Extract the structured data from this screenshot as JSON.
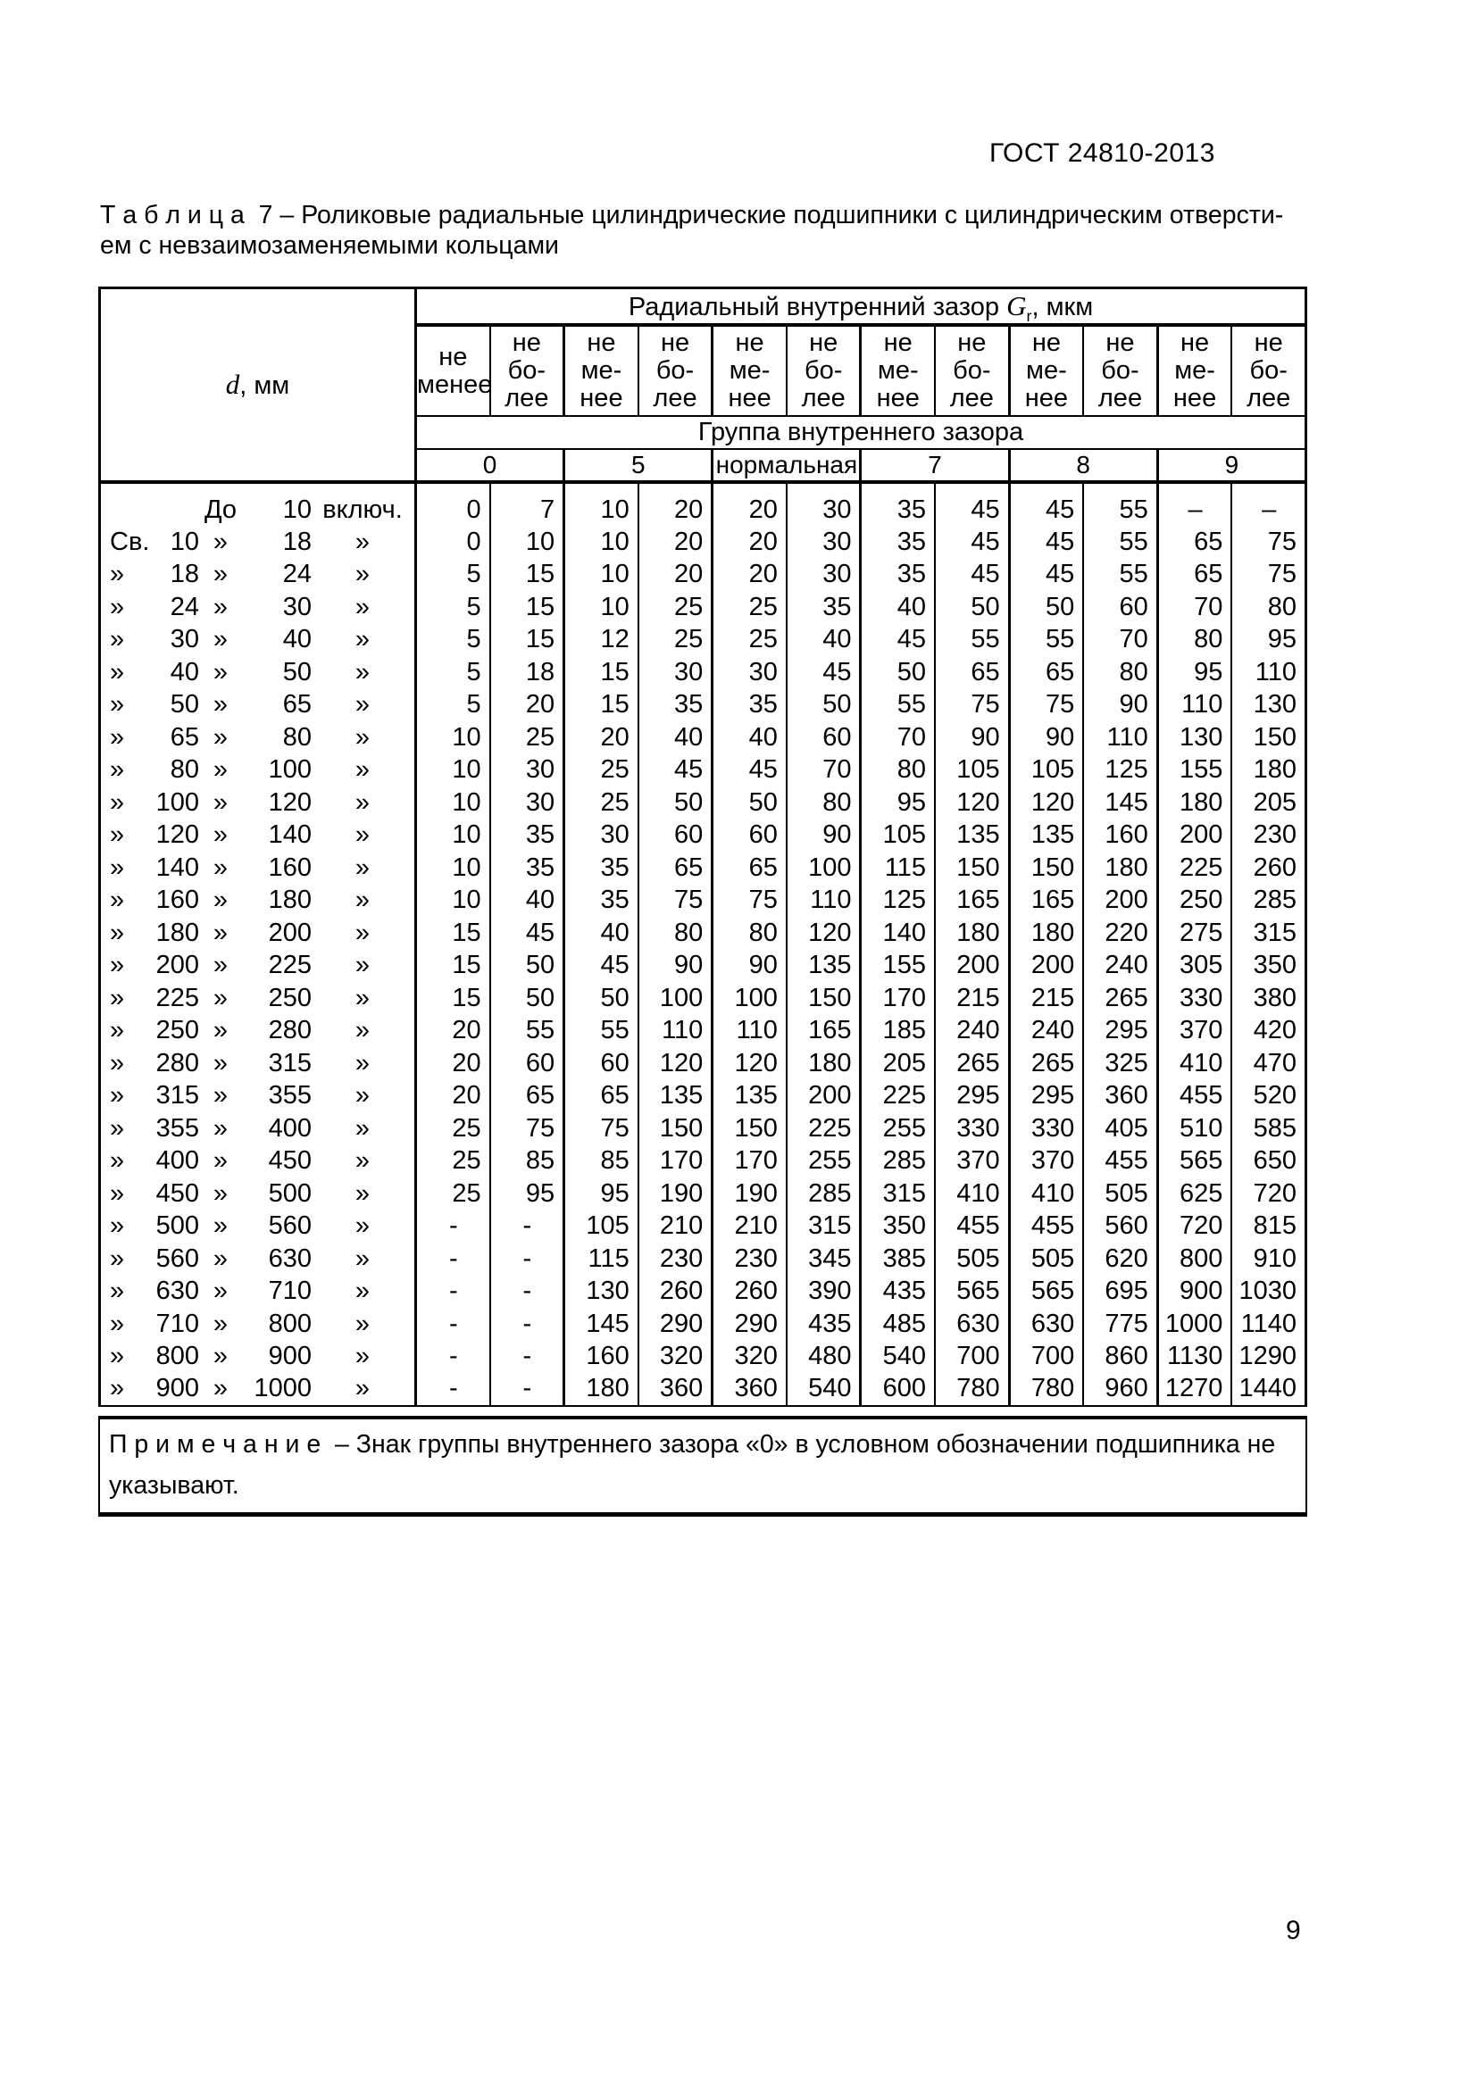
{
  "page": {
    "doc_ref": "ГОСТ 24810-2013",
    "title_line1": "Т а б л и ц а  7 – Роликовые радиальные цилиндрические подшипники с цилиндрическим отверсти-",
    "title_line2": "ем с невзаимозаменяемыми кольцами",
    "page_number": "9"
  },
  "table": {
    "d_label_italic": "d",
    "d_label_rest": ", мм",
    "top_header_pre": "Радиальный внутренний зазор ",
    "top_header_g": "G",
    "top_header_sub": "r",
    "top_header_post": ", мкм",
    "limit_headers": [
      [
        "не",
        "менее"
      ],
      [
        "не",
        "бо-",
        "лее"
      ],
      [
        "не",
        "ме-",
        "нее"
      ],
      [
        "не",
        "бо-",
        "лее"
      ],
      [
        "не",
        "ме-",
        "нее"
      ],
      [
        "не",
        "бо-",
        "лее"
      ],
      [
        "не",
        "ме-",
        "нее"
      ],
      [
        "не",
        "бо-",
        "лее"
      ],
      [
        "не",
        "ме-",
        "нее"
      ],
      [
        "не",
        "бо-",
        "лее"
      ],
      [
        "не",
        "ме-",
        "нее"
      ],
      [
        "не",
        "бо-",
        "лее"
      ]
    ],
    "group_header": "Группа внутреннего зазора",
    "groups": [
      "0",
      "5",
      "нормальная",
      "7",
      "8",
      "9"
    ],
    "rows": [
      {
        "d": [
          "",
          "",
          "До",
          "10",
          "включ."
        ],
        "v": [
          "0",
          "7",
          "10",
          "20",
          "20",
          "30",
          "35",
          "45",
          "45",
          "55",
          "–",
          "–"
        ]
      },
      {
        "d": [
          "Св.",
          "10",
          "»",
          "18",
          "»"
        ],
        "v": [
          "0",
          "10",
          "10",
          "20",
          "20",
          "30",
          "35",
          "45",
          "45",
          "55",
          "65",
          "75"
        ]
      },
      {
        "d": [
          "»",
          "18",
          "»",
          "24",
          "»"
        ],
        "v": [
          "5",
          "15",
          "10",
          "20",
          "20",
          "30",
          "35",
          "45",
          "45",
          "55",
          "65",
          "75"
        ]
      },
      {
        "d": [
          "»",
          "24",
          "»",
          "30",
          "»"
        ],
        "v": [
          "5",
          "15",
          "10",
          "25",
          "25",
          "35",
          "40",
          "50",
          "50",
          "60",
          "70",
          "80"
        ]
      },
      {
        "d": [
          "»",
          "30",
          "»",
          "40",
          "»"
        ],
        "v": [
          "5",
          "15",
          "12",
          "25",
          "25",
          "40",
          "45",
          "55",
          "55",
          "70",
          "80",
          "95"
        ]
      },
      {
        "d": [
          "»",
          "40",
          "»",
          "50",
          "»"
        ],
        "v": [
          "5",
          "18",
          "15",
          "30",
          "30",
          "45",
          "50",
          "65",
          "65",
          "80",
          "95",
          "110"
        ]
      },
      {
        "d": [
          "»",
          "50",
          "»",
          "65",
          "»"
        ],
        "v": [
          "5",
          "20",
          "15",
          "35",
          "35",
          "50",
          "55",
          "75",
          "75",
          "90",
          "110",
          "130"
        ]
      },
      {
        "d": [
          "»",
          "65",
          "»",
          "80",
          "»"
        ],
        "v": [
          "10",
          "25",
          "20",
          "40",
          "40",
          "60",
          "70",
          "90",
          "90",
          "110",
          "130",
          "150"
        ]
      },
      {
        "d": [
          "»",
          "80",
          "»",
          "100",
          "»"
        ],
        "v": [
          "10",
          "30",
          "25",
          "45",
          "45",
          "70",
          "80",
          "105",
          "105",
          "125",
          "155",
          "180"
        ]
      },
      {
        "d": [
          "»",
          "100",
          "»",
          "120",
          "»"
        ],
        "v": [
          "10",
          "30",
          "25",
          "50",
          "50",
          "80",
          "95",
          "120",
          "120",
          "145",
          "180",
          "205"
        ]
      },
      {
        "d": [
          "»",
          "120",
          "»",
          "140",
          "»"
        ],
        "v": [
          "10",
          "35",
          "30",
          "60",
          "60",
          "90",
          "105",
          "135",
          "135",
          "160",
          "200",
          "230"
        ]
      },
      {
        "d": [
          "»",
          "140",
          "»",
          "160",
          "»"
        ],
        "v": [
          "10",
          "35",
          "35",
          "65",
          "65",
          "100",
          "115",
          "150",
          "150",
          "180",
          "225",
          "260"
        ]
      },
      {
        "d": [
          "»",
          "160",
          "»",
          "180",
          "»"
        ],
        "v": [
          "10",
          "40",
          "35",
          "75",
          "75",
          "110",
          "125",
          "165",
          "165",
          "200",
          "250",
          "285"
        ]
      },
      {
        "d": [
          "»",
          "180",
          "»",
          "200",
          "»"
        ],
        "v": [
          "15",
          "45",
          "40",
          "80",
          "80",
          "120",
          "140",
          "180",
          "180",
          "220",
          "275",
          "315"
        ]
      },
      {
        "d": [
          "»",
          "200",
          "»",
          "225",
          "»"
        ],
        "v": [
          "15",
          "50",
          "45",
          "90",
          "90",
          "135",
          "155",
          "200",
          "200",
          "240",
          "305",
          "350"
        ]
      },
      {
        "d": [
          "»",
          "225",
          "»",
          "250",
          "»"
        ],
        "v": [
          "15",
          "50",
          "50",
          "100",
          "100",
          "150",
          "170",
          "215",
          "215",
          "265",
          "330",
          "380"
        ]
      },
      {
        "d": [
          "»",
          "250",
          "»",
          "280",
          "»"
        ],
        "v": [
          "20",
          "55",
          "55",
          "110",
          "110",
          "165",
          "185",
          "240",
          "240",
          "295",
          "370",
          "420"
        ]
      },
      {
        "d": [
          "»",
          "280",
          "»",
          "315",
          "»"
        ],
        "v": [
          "20",
          "60",
          "60",
          "120",
          "120",
          "180",
          "205",
          "265",
          "265",
          "325",
          "410",
          "470"
        ]
      },
      {
        "d": [
          "»",
          "315",
          "»",
          "355",
          "»"
        ],
        "v": [
          "20",
          "65",
          "65",
          "135",
          "135",
          "200",
          "225",
          "295",
          "295",
          "360",
          "455",
          "520"
        ]
      },
      {
        "d": [
          "»",
          "355",
          "»",
          "400",
          "»"
        ],
        "v": [
          "25",
          "75",
          "75",
          "150",
          "150",
          "225",
          "255",
          "330",
          "330",
          "405",
          "510",
          "585"
        ]
      },
      {
        "d": [
          "»",
          "400",
          "»",
          "450",
          "»"
        ],
        "v": [
          "25",
          "85",
          "85",
          "170",
          "170",
          "255",
          "285",
          "370",
          "370",
          "455",
          "565",
          "650"
        ]
      },
      {
        "d": [
          "»",
          "450",
          "»",
          "500",
          "»"
        ],
        "v": [
          "25",
          "95",
          "95",
          "190",
          "190",
          "285",
          "315",
          "410",
          "410",
          "505",
          "625",
          "720"
        ]
      },
      {
        "d": [
          "»",
          "500",
          "»",
          "560",
          "»"
        ],
        "v": [
          "-",
          "-",
          "105",
          "210",
          "210",
          "315",
          "350",
          "455",
          "455",
          "560",
          "720",
          "815"
        ]
      },
      {
        "d": [
          "»",
          "560",
          "»",
          "630",
          "»"
        ],
        "v": [
          "-",
          "-",
          "115",
          "230",
          "230",
          "345",
          "385",
          "505",
          "505",
          "620",
          "800",
          "910"
        ]
      },
      {
        "d": [
          "»",
          "630",
          "»",
          "710",
          "»"
        ],
        "v": [
          "-",
          "-",
          "130",
          "260",
          "260",
          "390",
          "435",
          "565",
          "565",
          "695",
          "900",
          "1030"
        ]
      },
      {
        "d": [
          "»",
          "710",
          "»",
          "800",
          "»"
        ],
        "v": [
          "-",
          "-",
          "145",
          "290",
          "290",
          "435",
          "485",
          "630",
          "630",
          "775",
          "1000",
          "1140"
        ]
      },
      {
        "d": [
          "»",
          "800",
          "»",
          "900",
          "»"
        ],
        "v": [
          "-",
          "-",
          "160",
          "320",
          "320",
          "480",
          "540",
          "700",
          "700",
          "860",
          "1130",
          "1290"
        ]
      },
      {
        "d": [
          "»",
          "900",
          "»",
          "1000",
          "»"
        ],
        "v": [
          "-",
          "-",
          "180",
          "360",
          "360",
          "540",
          "600",
          "780",
          "780",
          "960",
          "1270",
          "1440"
        ]
      }
    ],
    "note_line1": "П р и м е ч а н и е  – Знак группы внутреннего зазора «0» в условном обозначении подшипника не",
    "note_line2": "указывают."
  }
}
